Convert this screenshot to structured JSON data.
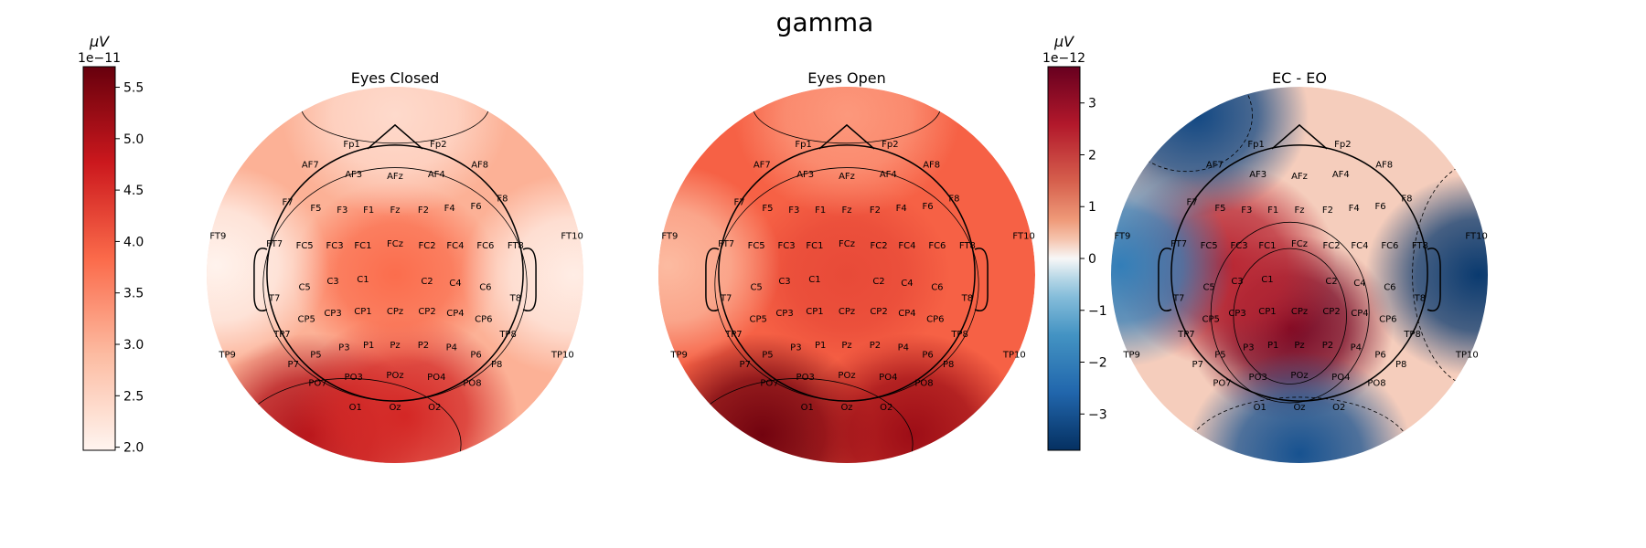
{
  "figure": {
    "suptitle": "gamma"
  },
  "chart_data": [
    {
      "type": "heatmap",
      "title": "Eyes Closed",
      "colormap": "Reds",
      "colorbar": {
        "unit": "µV",
        "multiplier": "1e−11",
        "ticks": [
          "2.0",
          "2.5",
          "3.0",
          "3.5",
          "4.0",
          "4.5",
          "5.0",
          "5.5"
        ],
        "range": [
          1.97,
          5.7
        ]
      },
      "hotspots": [
        {
          "region": "occipital-left",
          "value": 5.0
        },
        {
          "region": "occipital-center",
          "value": 4.6
        },
        {
          "region": "central",
          "value": 3.8
        },
        {
          "region": "temporal-left",
          "value": 2.0
        },
        {
          "region": "temporal-right",
          "value": 2.1
        },
        {
          "region": "frontal",
          "value": 2.4
        }
      ]
    },
    {
      "type": "heatmap",
      "title": "Eyes Open",
      "colormap": "Reds",
      "colorbar": {
        "unit": "µV",
        "multiplier": "1e−11",
        "shared_with": "Eyes Closed"
      },
      "hotspots": [
        {
          "region": "occipital-left",
          "value": 5.6
        },
        {
          "region": "occipital-right",
          "value": 5.2
        },
        {
          "region": "central",
          "value": 4.2
        },
        {
          "region": "temporal-left",
          "value": 2.9
        },
        {
          "region": "frontal",
          "value": 3.3
        }
      ]
    },
    {
      "type": "heatmap",
      "title": "EC - EO",
      "colormap": "RdBu_r",
      "colorbar": {
        "unit": "µV",
        "multiplier": "1e−12",
        "ticks": [
          "−3",
          "−2",
          "−1",
          "0",
          "1",
          "2",
          "3"
        ],
        "range": [
          -3.7,
          3.7
        ]
      },
      "hotspots": [
        {
          "region": "centro-parietal",
          "value": 3.5
        },
        {
          "region": "fronto-central-left",
          "value": 2.4
        },
        {
          "region": "temporal-right",
          "value": -3.5
        },
        {
          "region": "occipital",
          "value": -3.0
        },
        {
          "region": "frontal-left",
          "value": -3.2
        },
        {
          "region": "temporal-left",
          "value": -2.0
        }
      ]
    }
  ],
  "electrodes": [
    "Fp1",
    "Fp2",
    "AF7",
    "AF3",
    "AFz",
    "AF4",
    "AF8",
    "F7",
    "F5",
    "F3",
    "F1",
    "Fz",
    "F2",
    "F4",
    "F6",
    "F8",
    "FT9",
    "FT7",
    "FC5",
    "FC3",
    "FC1",
    "FCz",
    "FC2",
    "FC4",
    "FC6",
    "FT8",
    "FT10",
    "T7",
    "C5",
    "C3",
    "C1",
    "C2",
    "C4",
    "C6",
    "T8",
    "TP7",
    "CP5",
    "CP3",
    "CP1",
    "CPz",
    "CP2",
    "CP4",
    "CP6",
    "TP8",
    "TP9",
    "P7",
    "P5",
    "P3",
    "P1",
    "Pz",
    "P2",
    "P4",
    "P6",
    "P8",
    "TP10",
    "PO7",
    "PO3",
    "POz",
    "PO4",
    "PO8",
    "O1",
    "Oz",
    "O2"
  ],
  "colors": {
    "reds_low": "#fff5f0",
    "reds_high": "#67000d",
    "rdbu_low": "#053061",
    "rdbu_mid": "#f7f7f7",
    "rdbu_high": "#67001f"
  }
}
